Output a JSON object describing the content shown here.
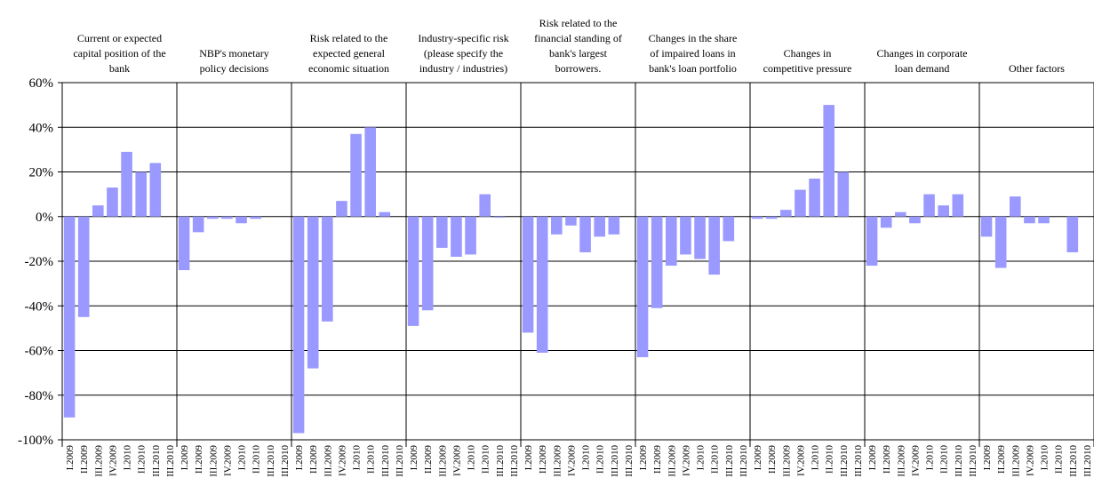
{
  "chart_data": {
    "type": "bar",
    "y_ticks": [
      "60%",
      "40%",
      "20%",
      "0%",
      "-20%",
      "-40%",
      "-60%",
      "-80%",
      "-100%"
    ],
    "ylim": [
      -100,
      60
    ],
    "y_unit": "%",
    "grid": true,
    "bar_color": "#9999ff",
    "groups": [
      {
        "name": "Current or expected capital position of the bank",
        "label_lines": [
          "Current or expected",
          "capital position of the",
          "bank"
        ],
        "categories": [
          "I.2009",
          "II.2009",
          "III.2009",
          "IV.2009",
          "I.2010",
          "II.2010",
          "III.2010"
        ],
        "values": [
          -90,
          -45,
          5,
          13,
          29,
          20,
          24
        ]
      },
      {
        "name": "NBP's monetary policy decisions",
        "label_lines": [
          "NBP's monetary",
          "policy decisions"
        ],
        "categories": [
          "I.2009",
          "II.2009",
          "III.2009",
          "IV.2009",
          "I.2010",
          "II.2010",
          "III.2010"
        ],
        "values": [
          -24,
          -7,
          -1,
          -1,
          -3,
          -1,
          0
        ]
      },
      {
        "name": "Risk related to the expected general economic situation",
        "label_lines": [
          "Risk related to the",
          "expected general",
          "economic situation"
        ],
        "categories": [
          "I.2009",
          "II.2009",
          "III.2009",
          "IV.2009",
          "I.2010",
          "II.2010",
          "III.2010"
        ],
        "values": [
          -97,
          -68,
          -47,
          7,
          37,
          40,
          2
        ]
      },
      {
        "name": "Industry-specific risk (please specify the industry / industries)",
        "label_lines": [
          "Industry-specific risk",
          "(please specify the",
          "industry / industries)"
        ],
        "categories": [
          "I.2009",
          "II.2009",
          "III.2009",
          "IV.2009",
          "I.2010",
          "II.2010",
          "III.2010"
        ],
        "values": [
          -49,
          -42,
          -14,
          -18,
          -17,
          10,
          -0.5
        ]
      },
      {
        "name": "Risk related to the financial standing of bank's largest borrowers.",
        "label_lines": [
          "Risk related to the",
          "financial standing of",
          "bank's largest",
          "borrowers."
        ],
        "categories": [
          "I.2009",
          "II.2009",
          "III.2009",
          "IV.2009",
          "I.2010",
          "II.2010",
          "III.2010"
        ],
        "values": [
          -52,
          -61,
          -8,
          -4,
          -16,
          -9,
          -8
        ]
      },
      {
        "name": "Changes in the share of impaired loans in bank's loan portfolio",
        "label_lines": [
          "Changes in the share",
          "of impaired loans in",
          "bank's loan portfolio"
        ],
        "categories": [
          "I.2009",
          "II.2009",
          "III.2009",
          "IV.2009",
          "I.2010",
          "II.2010",
          "III.2010"
        ],
        "values": [
          -63,
          -41,
          -22,
          -17,
          -19,
          -26,
          -11
        ]
      },
      {
        "name": "Changes in competitive pressure",
        "label_lines": [
          "Changes in",
          "competitive pressure"
        ],
        "categories": [
          "I.2009",
          "II.2009",
          "III.2009",
          "IV.2009",
          "I.2010",
          "II.2010",
          "III.2010"
        ],
        "values": [
          -1,
          -1,
          3,
          12,
          17,
          50,
          20
        ]
      },
      {
        "name": "Changes in corporate loan demand",
        "label_lines": [
          "Changes in corporate",
          "loan demand"
        ],
        "categories": [
          "I.2009",
          "II.2009",
          "III.2009",
          "IV.2009",
          "I.2010",
          "II.2010",
          "III.2010"
        ],
        "values": [
          -22,
          -5,
          2,
          -3,
          10,
          5,
          10
        ]
      },
      {
        "name": "Other factors",
        "label_lines": [
          "Other factors"
        ],
        "categories": [
          "I.2009",
          "II.2009",
          "III.2009",
          "IV.2009",
          "I.2010",
          "II.2010",
          "III.2010"
        ],
        "values": [
          -9,
          -23,
          9,
          -3,
          -3,
          0,
          -16
        ]
      }
    ]
  }
}
